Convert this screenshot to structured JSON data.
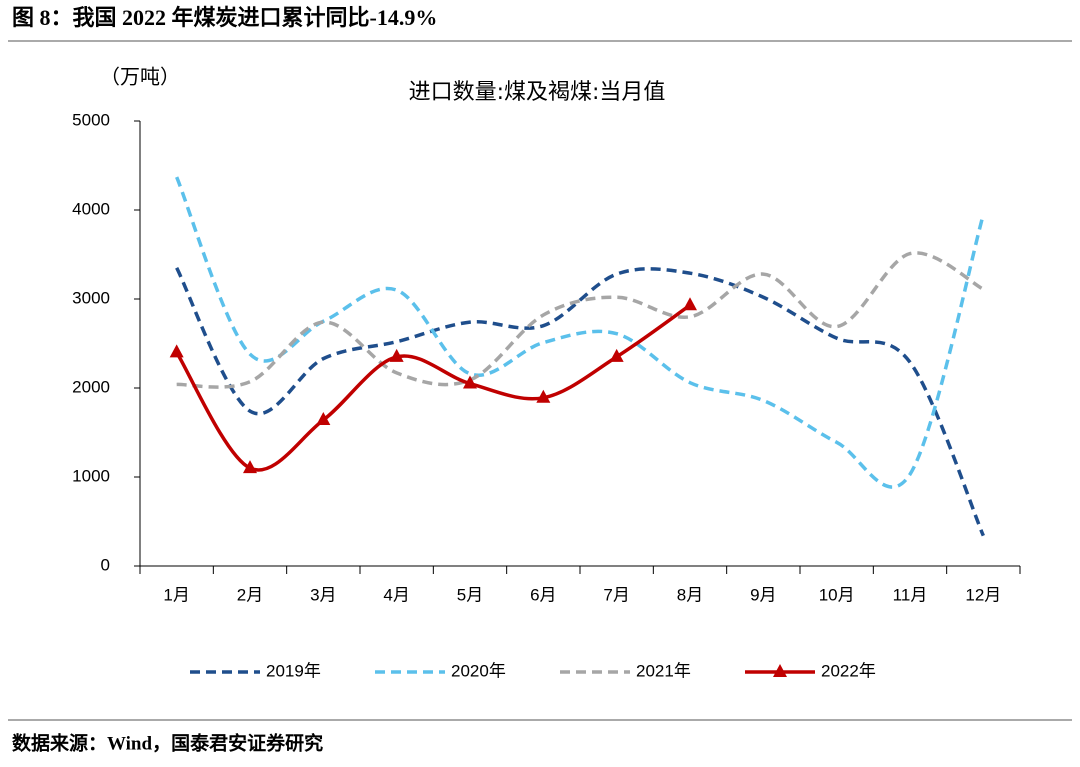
{
  "title": "图 8：我国 2022 年煤炭进口累计同比-14.9%",
  "source": "数据来源：Wind，国泰君安证券研究",
  "chart_data": {
    "type": "line",
    "title": "进口数量:煤及褐煤:当月值",
    "y_label": "（万吨）",
    "categories": [
      "1月",
      "2月",
      "3月",
      "4月",
      "5月",
      "6月",
      "7月",
      "8月",
      "9月",
      "10月",
      "11月",
      "12月"
    ],
    "series": [
      {
        "name": "2019年",
        "color": "#1f4e8c",
        "dashed": true,
        "smooth": true,
        "values": [
          3350,
          1740,
          2330,
          2520,
          2740,
          2700,
          3280,
          3290,
          3020,
          2560,
          2290,
          340
        ]
      },
      {
        "name": "2020年",
        "color": "#5bc0eb",
        "dashed": true,
        "smooth": true,
        "values": [
          4370,
          2380,
          2750,
          3100,
          2160,
          2510,
          2610,
          2060,
          1860,
          1390,
          1030,
          3950
        ]
      },
      {
        "name": "2021年",
        "color": "#a6a6a6",
        "dashed": true,
        "smooth": true,
        "values": [
          2040,
          2070,
          2740,
          2170,
          2090,
          2820,
          3020,
          2800,
          3280,
          2690,
          3510,
          3110
        ]
      },
      {
        "name": "2022年",
        "color": "#c00000",
        "dashed": false,
        "smooth": true,
        "marker": "triangle",
        "values": [
          2400,
          1100,
          1640,
          2350,
          2050,
          1890,
          2350,
          2930,
          null,
          null,
          null,
          null
        ]
      }
    ],
    "ylim": [
      0,
      5000
    ],
    "yticks": [
      0,
      1000,
      2000,
      3000,
      4000,
      5000
    ],
    "grid": false,
    "legend": "bottom"
  }
}
